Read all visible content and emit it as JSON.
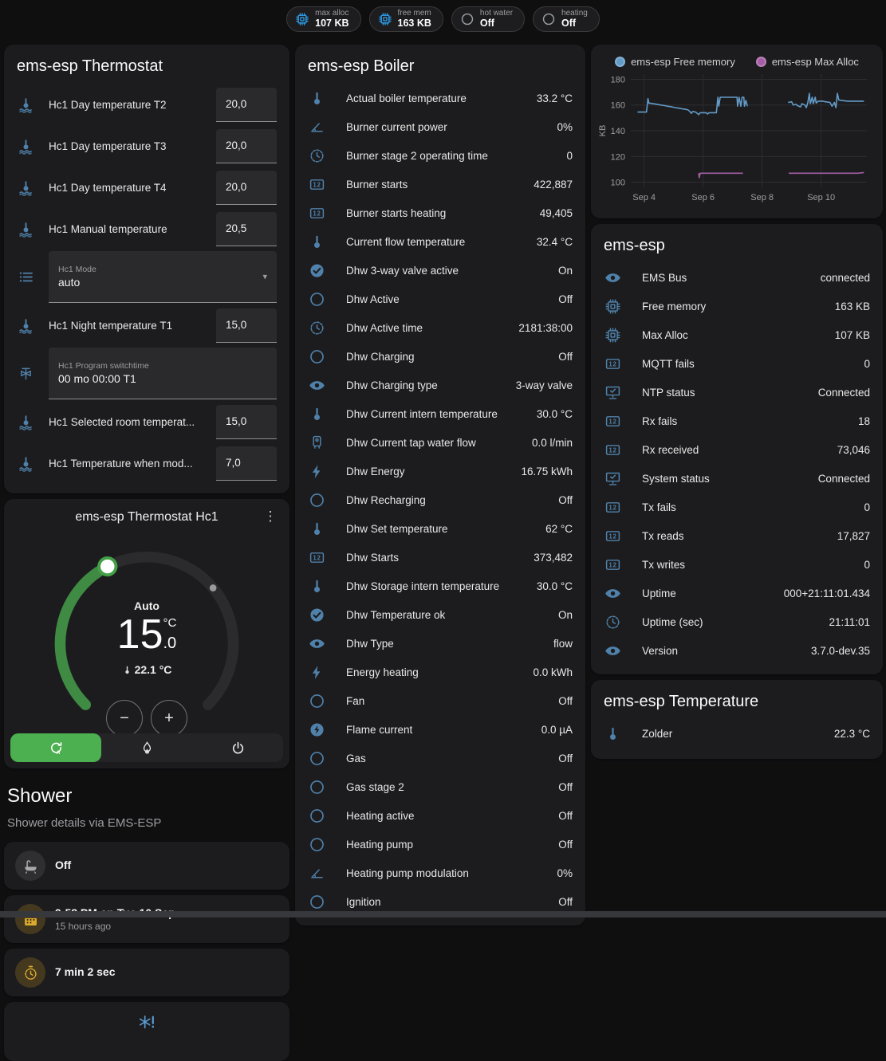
{
  "colors": {
    "icon_blue": "#4f81aa",
    "badge_blue": "#2da3f2",
    "badge_gray": "#9aa0a6",
    "green": "#4caf50",
    "arc_green": "#3f8b43",
    "amber": "#dcaa2e",
    "chart_blue": "#639bc8",
    "chart_purple": "#a55ea5",
    "alert_blue": "#5a9ad2"
  },
  "badges": [
    {
      "icon": "chip",
      "icon_color": "#2da3f2",
      "label": "max alloc",
      "value": "107 KB"
    },
    {
      "icon": "chip",
      "icon_color": "#2da3f2",
      "label": "free mem",
      "value": "163 KB"
    },
    {
      "icon": "circle",
      "icon_color": "#9aa0a6",
      "label": "hot water",
      "value": "Off"
    },
    {
      "icon": "circle",
      "icon_color": "#9aa0a6",
      "label": "heating",
      "value": "Off"
    }
  ],
  "thermostat_card": {
    "title": "ems-esp Thermostat",
    "rows": [
      {
        "type": "number",
        "icon": "thermo-water",
        "label": "Hc1 Day temperature T2",
        "value": "20,0"
      },
      {
        "type": "number",
        "icon": "thermo-water",
        "label": "Hc1 Day temperature T3",
        "value": "20,0"
      },
      {
        "type": "number",
        "icon": "thermo-water",
        "label": "Hc1 Day temperature T4",
        "value": "20,0"
      },
      {
        "type": "number",
        "icon": "thermo-water",
        "label": "Hc1 Manual temperature",
        "value": "20,5"
      },
      {
        "type": "select",
        "icon": "list",
        "label": "Hc1 Mode",
        "value": "auto"
      },
      {
        "type": "number",
        "icon": "thermo-water",
        "label": "Hc1 Night temperature T1",
        "value": "15,0"
      },
      {
        "type": "text",
        "icon": "valve",
        "label": "Hc1 Program switchtime",
        "value": "00 mo 00:00 T1"
      },
      {
        "type": "number",
        "icon": "thermo-water",
        "label": "Hc1 Selected room temperat...",
        "value": "15,0"
      },
      {
        "type": "number",
        "icon": "thermo-water",
        "label": "Hc1 Temperature when mod...",
        "value": "7,0"
      }
    ]
  },
  "dial_card": {
    "title": "ems-esp Thermostat Hc1",
    "mode": "Auto",
    "target_int": "15",
    "target_dec": ".0",
    "unit": "°C",
    "current": "22.1 °C",
    "minus": "−",
    "plus": "+",
    "menu": "⋮"
  },
  "shower": {
    "title": "Shower",
    "subtitle": "Shower details via EMS-ESP",
    "items": [
      {
        "icon": "bathtub",
        "style": "gray",
        "value": "Off",
        "secondary": ""
      },
      {
        "icon": "calendar",
        "style": "amber",
        "value": "9:58 PM on Tue 10 Sep",
        "secondary": "15 hours ago"
      },
      {
        "icon": "timer",
        "style": "amber",
        "value": "7 min 2 sec",
        "secondary": ""
      }
    ]
  },
  "boiler_card": {
    "title": "ems-esp Boiler",
    "rows": [
      {
        "icon": "thermometer",
        "label": "Actual boiler temperature",
        "value": "33.2 °C"
      },
      {
        "icon": "angle",
        "label": "Burner current power",
        "value": "0%"
      },
      {
        "icon": "clock",
        "label": "Burner stage 2 operating time",
        "value": "0"
      },
      {
        "icon": "counter",
        "label": "Burner starts",
        "value": "422,887"
      },
      {
        "icon": "counter",
        "label": "Burner starts heating",
        "value": "49,405"
      },
      {
        "icon": "thermometer",
        "label": "Current flow temperature",
        "value": "32.4 °C"
      },
      {
        "icon": "check-circle",
        "label": "Dhw 3-way valve active",
        "value": "On"
      },
      {
        "icon": "circle",
        "label": "Dhw Active",
        "value": "Off"
      },
      {
        "icon": "clock",
        "label": "Dhw Active time",
        "value": "2181:38:00"
      },
      {
        "icon": "circle",
        "label": "Dhw Charging",
        "value": "Off"
      },
      {
        "icon": "eye",
        "label": "Dhw Charging type",
        "value": "3-way valve"
      },
      {
        "icon": "thermometer",
        "label": "Dhw Current intern temperature",
        "value": "30.0 °C"
      },
      {
        "icon": "water-heater",
        "label": "Dhw Current tap water flow",
        "value": "0.0 l/min"
      },
      {
        "icon": "flash",
        "label": "Dhw Energy",
        "value": "16.75 kWh"
      },
      {
        "icon": "circle",
        "label": "Dhw Recharging",
        "value": "Off"
      },
      {
        "icon": "thermometer",
        "label": "Dhw Set temperature",
        "value": "62 °C"
      },
      {
        "icon": "counter",
        "label": "Dhw Starts",
        "value": "373,482"
      },
      {
        "icon": "thermometer",
        "label": "Dhw Storage intern temperature",
        "value": "30.0 °C"
      },
      {
        "icon": "check-circle",
        "label": "Dhw Temperature ok",
        "value": "On"
      },
      {
        "icon": "eye",
        "label": "Dhw Type",
        "value": "flow"
      },
      {
        "icon": "flash",
        "label": "Energy heating",
        "value": "0.0 kWh"
      },
      {
        "icon": "circle",
        "label": "Fan",
        "value": "Off"
      },
      {
        "icon": "flash-circle",
        "label": "Flame current",
        "value": "0.0 µA"
      },
      {
        "icon": "circle",
        "label": "Gas",
        "value": "Off"
      },
      {
        "icon": "circle",
        "label": "Gas stage 2",
        "value": "Off"
      },
      {
        "icon": "circle",
        "label": "Heating active",
        "value": "Off"
      },
      {
        "icon": "circle",
        "label": "Heating pump",
        "value": "Off"
      },
      {
        "icon": "angle",
        "label": "Heating pump modulation",
        "value": "0%"
      },
      {
        "icon": "circle",
        "label": "Ignition",
        "value": "Off"
      }
    ]
  },
  "ems_card": {
    "title": "ems-esp",
    "rows": [
      {
        "icon": "eye",
        "label": "EMS Bus",
        "value": "connected"
      },
      {
        "icon": "chip",
        "label": "Free memory",
        "value": "163 KB"
      },
      {
        "icon": "chip",
        "label": "Max Alloc",
        "value": "107 KB"
      },
      {
        "icon": "counter",
        "label": "MQTT fails",
        "value": "0"
      },
      {
        "icon": "monitor-check",
        "label": "NTP status",
        "value": "Connected"
      },
      {
        "icon": "counter",
        "label": "Rx fails",
        "value": "18"
      },
      {
        "icon": "counter",
        "label": "Rx received",
        "value": "73,046"
      },
      {
        "icon": "monitor-check",
        "label": "System status",
        "value": "Connected"
      },
      {
        "icon": "counter",
        "label": "Tx fails",
        "value": "0"
      },
      {
        "icon": "counter",
        "label": "Tx reads",
        "value": "17,827"
      },
      {
        "icon": "counter",
        "label": "Tx writes",
        "value": "0"
      },
      {
        "icon": "eye",
        "label": "Uptime",
        "value": "000+21:11:01.434"
      },
      {
        "icon": "clock",
        "label": "Uptime (sec)",
        "value": "21:11:01"
      },
      {
        "icon": "eye",
        "label": "Version",
        "value": "3.7.0-dev.35"
      }
    ]
  },
  "temperature_card": {
    "title": "ems-esp Temperature",
    "rows": [
      {
        "icon": "thermometer",
        "label": "Zolder",
        "value": "22.3 °C"
      }
    ]
  },
  "chart_data": {
    "type": "line",
    "ylabel": "KB",
    "ylim": [
      96,
      184
    ],
    "yticks": [
      100,
      120,
      140,
      160,
      180
    ],
    "xlim": [
      3.55,
      11.55
    ],
    "xticks": [
      {
        "pos": 4,
        "label": "Sep 4"
      },
      {
        "pos": 6,
        "label": "Sep 6"
      },
      {
        "pos": 8,
        "label": "Sep 8"
      },
      {
        "pos": 10,
        "label": "Sep 10"
      }
    ],
    "grid": true,
    "legend_position": "top",
    "series": [
      {
        "name": "ems-esp Free memory",
        "color": "#639bc8",
        "segments": [
          [
            [
              3.78,
              154.5
            ],
            [
              4.08,
              154.5
            ],
            [
              4.1,
              158
            ],
            [
              4.13,
              165
            ],
            [
              4.16,
              161.5
            ],
            [
              4.3,
              161
            ],
            [
              4.45,
              160.5
            ],
            [
              4.55,
              160
            ],
            [
              4.7,
              159.5
            ],
            [
              4.8,
              159
            ],
            [
              4.95,
              158.5
            ],
            [
              5.05,
              158
            ],
            [
              5.2,
              157.5
            ],
            [
              5.3,
              157
            ],
            [
              5.45,
              156.5
            ],
            [
              5.5,
              156
            ],
            [
              5.55,
              155
            ],
            [
              5.6,
              153.5
            ],
            [
              5.65,
              155
            ],
            [
              5.75,
              154.5
            ],
            [
              5.85,
              152.5
            ],
            [
              5.9,
              154
            ],
            [
              6.1,
              154
            ],
            [
              6.15,
              153
            ],
            [
              6.2,
              154
            ],
            [
              6.45,
              154
            ],
            [
              6.5,
              166
            ],
            [
              6.53,
              159
            ],
            [
              6.58,
              166
            ],
            [
              7.1,
              166
            ],
            [
              7.15,
              166
            ],
            [
              7.17,
              159
            ],
            [
              7.22,
              166
            ],
            [
              7.28,
              159
            ],
            [
              7.32,
              166
            ],
            [
              7.38,
              166
            ],
            [
              7.4,
              159
            ],
            [
              7.45,
              163.5
            ],
            [
              7.5,
              159
            ]
          ],
          [
            [
              8.88,
              162
            ],
            [
              9.0,
              162.5
            ],
            [
              9.05,
              160
            ],
            [
              9.15,
              160.5
            ],
            [
              9.2,
              159.5
            ],
            [
              9.3,
              158.5
            ],
            [
              9.35,
              161
            ],
            [
              9.45,
              160
            ],
            [
              9.5,
              158
            ],
            [
              9.55,
              162
            ],
            [
              9.6,
              169
            ],
            [
              9.63,
              161
            ],
            [
              9.7,
              166
            ],
            [
              9.73,
              161
            ],
            [
              9.8,
              166
            ],
            [
              9.83,
              161.5
            ],
            [
              9.9,
              163
            ],
            [
              10.05,
              163
            ],
            [
              10.15,
              162.5
            ],
            [
              10.3,
              162
            ],
            [
              10.37,
              159
            ],
            [
              10.45,
              162
            ],
            [
              10.5,
              158
            ],
            [
              10.55,
              169
            ],
            [
              10.6,
              164
            ],
            [
              10.7,
              163.5
            ],
            [
              10.9,
              163
            ],
            [
              11.45,
              163
            ]
          ]
        ]
      },
      {
        "name": "ems-esp Max Alloc",
        "color": "#a55ea5",
        "segments": [
          [
            [
              5.85,
              107
            ],
            [
              5.87,
              103.5
            ],
            [
              5.9,
              107
            ],
            [
              7.35,
              107
            ]
          ],
          [
            [
              8.9,
              107
            ],
            [
              11.25,
              107
            ],
            [
              11.45,
              107.5
            ]
          ]
        ]
      }
    ]
  }
}
